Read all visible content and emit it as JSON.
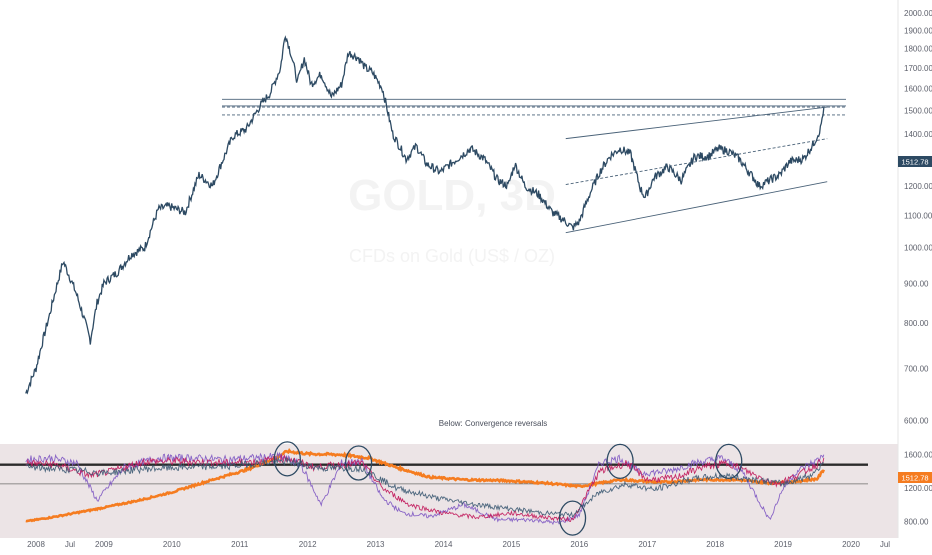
{
  "chart_data": {
    "type": "line",
    "title": "",
    "xlabel": "",
    "ylabel": "",
    "price_axis_labels": [
      "2000.00",
      "1900.00",
      "1800.00",
      "1700.00",
      "1600.00",
      "1500.00",
      "1400.00",
      "1300.00",
      "1200.00",
      "1100.00",
      "1000.00",
      "900.00",
      "800.00",
      "700.00",
      "600.00"
    ],
    "price_axis_min": 580,
    "price_axis_max": 2030,
    "last_price_label": "1512.78",
    "lower_axis_labels": [
      "1600.00",
      "1200.00",
      "800.00"
    ],
    "lower_last_label": "1512.78",
    "x_axis_labels": [
      "2008",
      "Jul",
      "2009",
      "2010",
      "2011",
      "2012",
      "2013",
      "2014",
      "2015",
      "2016",
      "2017",
      "2018",
      "2019",
      "2020",
      "Jul"
    ],
    "annotation": "Below: Convergence reversals",
    "watermark_symbol": "GOLD, 3D",
    "watermark_name": "CFDs on Gold (US$ / OZ)",
    "series": [
      {
        "name": "",
        "x": [
          2007.85,
          2008.0,
          2008.2,
          2008.4,
          2008.6,
          2008.8,
          2008.9,
          2009.0,
          2009.2,
          2009.4,
          2009.6,
          2009.8,
          2009.95,
          2010.2,
          2010.4,
          2010.6,
          2010.9,
          2011.1,
          2011.3,
          2011.45,
          2011.6,
          2011.67,
          2011.75,
          2011.85,
          2011.95,
          2012.05,
          2012.2,
          2012.35,
          2012.5,
          2012.6,
          2012.75,
          2012.85,
          2012.95,
          2013.1,
          2013.25,
          2013.45,
          2013.6,
          2013.75,
          2013.95,
          2014.2,
          2014.4,
          2014.6,
          2014.8,
          2014.95,
          2015.05,
          2015.2,
          2015.4,
          2015.6,
          2015.8,
          2015.9,
          2016.0,
          2016.15,
          2016.3,
          2016.45,
          2016.6,
          2016.75,
          2016.9,
          2016.97,
          2017.1,
          2017.3,
          2017.5,
          2017.7,
          2017.9,
          2018.05,
          2018.2,
          2018.35,
          2018.5,
          2018.65,
          2018.8,
          2018.95,
          2019.1,
          2019.3,
          2019.45,
          2019.55,
          2019.6
        ],
        "values": [
          650,
          700,
          820,
          960,
          870,
          760,
          850,
          900,
          930,
          980,
          1000,
          1120,
          1130,
          1110,
          1240,
          1200,
          1390,
          1420,
          1520,
          1580,
          1700,
          1880,
          1780,
          1630,
          1750,
          1620,
          1670,
          1560,
          1620,
          1780,
          1750,
          1700,
          1680,
          1600,
          1400,
          1300,
          1350,
          1280,
          1250,
          1300,
          1340,
          1300,
          1220,
          1200,
          1280,
          1200,
          1170,
          1110,
          1080,
          1060,
          1080,
          1170,
          1250,
          1310,
          1340,
          1320,
          1190,
          1160,
          1230,
          1270,
          1220,
          1310,
          1310,
          1340,
          1330,
          1300,
          1250,
          1200,
          1220,
          1240,
          1290,
          1300,
          1360,
          1420,
          1512
        ]
      }
    ],
    "lower_series": [
      {
        "name": "",
        "color": "#f57c20",
        "x": [
          2007.85,
          2008.3,
          2008.9,
          2009.5,
          2010.0,
          2010.6,
          2011.1,
          2011.5,
          2011.7,
          2012.0,
          2012.5,
          2012.9,
          2013.3,
          2013.8,
          2014.3,
          2014.9,
          2015.5,
          2016.0,
          2016.6,
          2017.2,
          2017.8,
          2018.3,
          2018.8,
          2019.2,
          2019.5,
          2019.6
        ],
        "values": [
          800,
          860,
          950,
          1050,
          1150,
          1300,
          1420,
          1550,
          1640,
          1610,
          1600,
          1560,
          1450,
          1330,
          1300,
          1290,
          1260,
          1220,
          1300,
          1270,
          1300,
          1300,
          1260,
          1280,
          1310,
          1420
        ]
      },
      {
        "name": "",
        "color": "#7e57c2",
        "x": [
          2007.85,
          2008.2,
          2008.6,
          2008.9,
          2009.3,
          2009.8,
          2010.3,
          2010.8,
          2011.2,
          2011.6,
          2011.9,
          2012.2,
          2012.5,
          2012.8,
          2013.1,
          2013.4,
          2013.8,
          2014.3,
          2014.8,
          2015.3,
          2015.7,
          2016.0,
          2016.3,
          2016.6,
          2016.9,
          2017.3,
          2017.7,
          2018.1,
          2018.4,
          2018.8,
          2019.0,
          2019.2,
          2019.5,
          2019.6
        ],
        "values": [
          1540,
          1560,
          1500,
          1050,
          1450,
          1560,
          1560,
          1540,
          1560,
          1580,
          1480,
          1000,
          1500,
          1520,
          1080,
          900,
          860,
          1000,
          820,
          820,
          780,
          880,
          1500,
          1560,
          1380,
          1400,
          1500,
          1560,
          1400,
          820,
          1200,
          1400,
          1530,
          1600
        ]
      },
      {
        "name": "",
        "color": "#c2185b",
        "x": [
          2007.85,
          2008.3,
          2008.8,
          2009.1,
          2009.6,
          2010.2,
          2010.8,
          2011.3,
          2011.7,
          2012.1,
          2012.5,
          2012.8,
          2013.1,
          2013.5,
          2014.0,
          2014.5,
          2015.0,
          2015.5,
          2015.9,
          2016.3,
          2016.7,
          2017.0,
          2017.4,
          2017.8,
          2018.2,
          2018.6,
          2018.9,
          2019.2,
          2019.5,
          2019.6
        ],
        "values": [
          1500,
          1480,
          1350,
          1400,
          1520,
          1520,
          1500,
          1520,
          1560,
          1450,
          1480,
          1500,
          1200,
          1000,
          900,
          850,
          900,
          850,
          820,
          1400,
          1500,
          1300,
          1320,
          1450,
          1500,
          1350,
          1250,
          1350,
          1480,
          1560
        ]
      },
      {
        "name": "",
        "color": "#3d5a73",
        "x": [
          2007.85,
          2008.5,
          2009.0,
          2009.6,
          2010.2,
          2010.8,
          2011.3,
          2011.7,
          2012.2,
          2012.8,
          2013.3,
          2013.9,
          2014.5,
          2015.0,
          2015.5,
          2015.9,
          2016.3,
          2016.7,
          2017.1,
          2017.6,
          2018.1,
          2018.6,
          2019.0,
          2019.4,
          2019.6
        ],
        "values": [
          1450,
          1420,
          1380,
          1430,
          1450,
          1460,
          1500,
          1520,
          1440,
          1440,
          1200,
          1080,
          1000,
          950,
          900,
          880,
          1150,
          1250,
          1180,
          1300,
          1350,
          1300,
          1250,
          1350,
          1500
        ]
      }
    ],
    "lower_axis_min": 650,
    "lower_axis_max": 1680,
    "horizontal_levels": [
      1480,
      1520,
      1550
    ],
    "lower_levels": [
      1480,
      1250
    ],
    "channel_upper": {
      "x": [
        2015.8,
        2019.6
      ],
      "values": [
        1380,
        1515
      ]
    },
    "channel_mid": {
      "x": [
        2015.8,
        2019.6
      ],
      "values": [
        1205,
        1380
      ]
    },
    "channel_lower": {
      "x": [
        2015.8,
        2019.6
      ],
      "values": [
        1045,
        1215
      ]
    },
    "circles": [
      {
        "x": 2011.7,
        "y": 1550
      },
      {
        "x": 2012.75,
        "y": 1500
      },
      {
        "x": 2015.9,
        "y": 840
      },
      {
        "x": 2016.6,
        "y": 1520
      },
      {
        "x": 2018.2,
        "y": 1520
      }
    ],
    "colors": {
      "price_line": "#2d4a63",
      "level_line": "#4a6278",
      "lower_bg": "#ece4e6",
      "black_level": "#2b2b2b",
      "label_bg": "#2d4a63"
    }
  }
}
